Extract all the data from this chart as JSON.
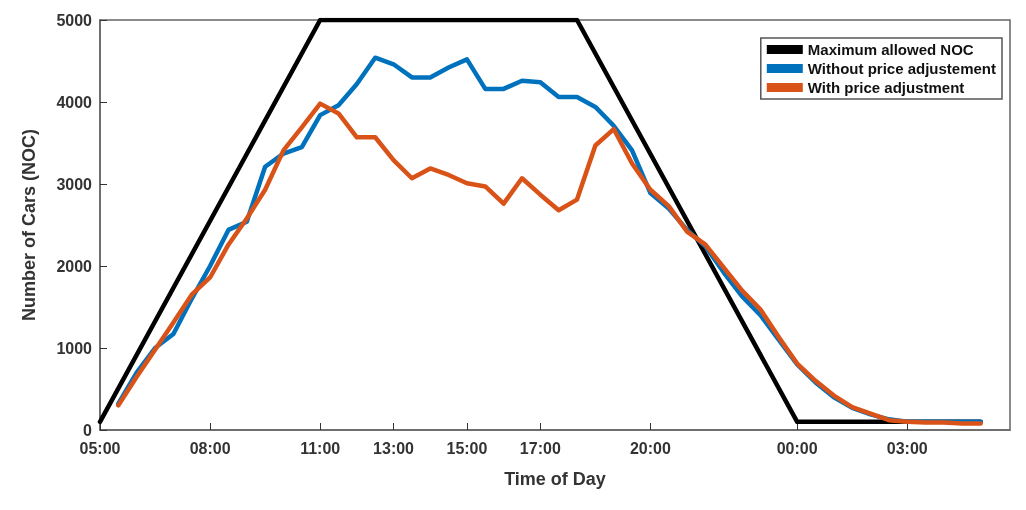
{
  "chart_data": {
    "type": "line",
    "xlabel": "Time of Day",
    "ylabel": "Number of Cars (NOC)",
    "xlim": [
      "--01-01T05:00",
      "--01-02T05:48"
    ],
    "ylim": [
      0,
      5000
    ],
    "xticks": [
      {
        "value": "--01-01T05:00",
        "label": "05:00"
      },
      {
        "value": "--01-01T08:00",
        "label": "08:00"
      },
      {
        "value": "--01-01T11:00",
        "label": "11:00"
      },
      {
        "value": "--01-01T13:00",
        "label": "13:00"
      },
      {
        "value": "--01-01T15:00",
        "label": "15:00"
      },
      {
        "value": "--01-01T17:00",
        "label": "17:00"
      },
      {
        "value": "--01-01T20:00",
        "label": "20:00"
      },
      {
        "value": "--01-02T00:00",
        "label": "00:00"
      },
      {
        "value": "--01-02T03:00",
        "label": "03:00"
      }
    ],
    "yticks": [
      0,
      1000,
      2000,
      3000,
      4000,
      5000
    ],
    "grid": false,
    "legend": "top right",
    "marker": "none",
    "line_style": "solid",
    "x": [
      "--01-01T05:30",
      "--01-01T06:00",
      "--01-01T06:30",
      "--01-01T07:00",
      "--01-01T07:30",
      "--01-01T08:00",
      "--01-01T08:30",
      "--01-01T09:00",
      "--01-01T09:30",
      "--01-01T10:00",
      "--01-01T10:30",
      "--01-01T11:00",
      "--01-01T11:30",
      "--01-01T12:00",
      "--01-01T12:30",
      "--01-01T13:00",
      "--01-01T13:30",
      "--01-01T14:00",
      "--01-01T14:30",
      "--01-01T15:00",
      "--01-01T15:30",
      "--01-01T16:00",
      "--01-01T16:30",
      "--01-01T17:00",
      "--01-01T17:30",
      "--01-01T18:00",
      "--01-01T18:30",
      "--01-01T19:00",
      "--01-01T19:30",
      "--01-01T20:00",
      "--01-01T20:30",
      "--01-01T21:00",
      "--01-01T21:30",
      "--01-01T22:00",
      "--01-01T22:30",
      "--01-01T23:00",
      "--01-01T23:30",
      "--01-02T00:00",
      "--01-02T00:30",
      "--01-02T01:00",
      "--01-02T01:30",
      "--01-02T02:00",
      "--01-02T02:30",
      "--01-02T03:00",
      "--01-02T03:30",
      "--01-02T04:00",
      "--01-02T04:30",
      "--01-02T05:00"
    ],
    "series": [
      {
        "name": "Maximum allowed NOC",
        "color": "#000000",
        "x": [
          "--01-01T05:00",
          "--01-01T11:00",
          "--01-01T18:00",
          "--01-02T00:00",
          "--01-02T05:00"
        ],
        "values": [
          100,
          5000,
          5000,
          100,
          100
        ]
      },
      {
        "name": "Without price adjustement",
        "color": "#0072bd",
        "values": [
          320,
          700,
          1000,
          1170,
          1600,
          2000,
          2440,
          2540,
          3210,
          3370,
          3450,
          3840,
          3960,
          4220,
          4540,
          4460,
          4300,
          4300,
          4420,
          4520,
          4160,
          4160,
          4260,
          4240,
          4060,
          4060,
          3940,
          3710,
          3410,
          2890,
          2700,
          2440,
          2240,
          1920,
          1630,
          1400,
          1100,
          800,
          580,
          400,
          270,
          190,
          130,
          100,
          100,
          100,
          100,
          100
        ]
      },
      {
        "name": "With price adjustment",
        "color": "#d95319",
        "values": [
          300,
          650,
          980,
          1310,
          1650,
          1860,
          2260,
          2580,
          2930,
          3410,
          3690,
          3980,
          3860,
          3570,
          3570,
          3290,
          3070,
          3190,
          3110,
          3010,
          2970,
          2760,
          3070,
          2870,
          2680,
          2810,
          3470,
          3670,
          3250,
          2930,
          2730,
          2420,
          2260,
          1980,
          1700,
          1470,
          1130,
          810,
          600,
          420,
          280,
          200,
          120,
          100,
          90,
          90,
          80,
          80
        ]
      }
    ]
  }
}
